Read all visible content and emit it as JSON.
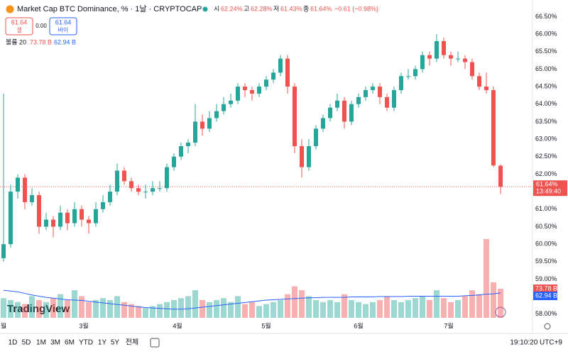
{
  "chart_data": {
    "type": "candlestick",
    "title": "Market Cap BTC Dominance, % · 1날 · CRYPTOCAP",
    "ohlc_header": [
      {
        "label": "시",
        "value": "62.24%"
      },
      {
        "label": "고",
        "value": "62.28%"
      },
      {
        "label": "저",
        "value": "61.43%"
      },
      {
        "label": "종",
        "value": "61.64%"
      }
    ],
    "change": "−0.61 (−0.98%)",
    "sell": {
      "price": "61.64",
      "label": "셀"
    },
    "spread": "0.00",
    "buy": {
      "price": "61.64",
      "label": "바이"
    },
    "volume_legend": {
      "name": "볼륨 20",
      "volume": "73.78 B",
      "ma": "62.94 B"
    },
    "last_price_tag": "61.64%",
    "countdown": "13:49:40",
    "last_price": 61.64,
    "volume_tag": "73.78 B",
    "ma_tag": "62.94 B",
    "up_color": "#26a69a",
    "down_color": "#ef5350",
    "ma_color": "#2962ff",
    "x_labels": [
      "월",
      "3월",
      "4월",
      "5월",
      "6월",
      "7월"
    ],
    "ylim": [
      57.45,
      66.67
    ],
    "yticks": [
      {
        "value": 58,
        "label": "58.00%"
      },
      {
        "value": 58.5,
        "label": "58.50%"
      },
      {
        "value": 59,
        "label": "59.00%"
      },
      {
        "value": 59.5,
        "label": "59.50%"
      },
      {
        "value": 60,
        "label": "60.00%"
      },
      {
        "value": 60.5,
        "label": "60.50%"
      },
      {
        "value": 61,
        "label": "61.00%"
      },
      {
        "value": 61.5,
        "label": "61.50%"
      },
      {
        "value": 62,
        "label": "62.00%"
      },
      {
        "value": 62.5,
        "label": "62.50%"
      },
      {
        "value": 63,
        "label": "63.00%"
      },
      {
        "value": 63.5,
        "label": "63.50%"
      },
      {
        "value": 64,
        "label": "64.00%"
      },
      {
        "value": 64.5,
        "label": "64.50%"
      },
      {
        "value": 65,
        "label": "65.00%"
      },
      {
        "value": 65.5,
        "label": "65.50%"
      },
      {
        "value": 66,
        "label": "66.00%"
      },
      {
        "value": 66.5,
        "label": "66.50%"
      }
    ],
    "ohlc": [
      [
        59.6,
        64.3,
        59.5,
        60.0
      ],
      [
        60.0,
        61.7,
        59.9,
        61.5
      ],
      [
        61.5,
        62.0,
        61.3,
        61.9
      ],
      [
        61.9,
        62.0,
        61.0,
        61.2
      ],
      [
        61.2,
        61.6,
        61.1,
        61.4
      ],
      [
        61.4,
        61.5,
        60.3,
        60.5
      ],
      [
        60.5,
        60.9,
        60.4,
        60.7
      ],
      [
        60.7,
        60.8,
        60.2,
        60.5
      ],
      [
        60.5,
        61.1,
        60.4,
        60.9
      ],
      [
        60.9,
        61.0,
        60.4,
        60.6
      ],
      [
        60.6,
        61.2,
        60.5,
        61.0
      ],
      [
        61.0,
        61.1,
        60.5,
        60.7
      ],
      [
        60.7,
        60.8,
        60.3,
        60.6
      ],
      [
        60.6,
        61.2,
        60.5,
        61.0
      ],
      [
        61.0,
        61.4,
        60.9,
        61.2
      ],
      [
        61.2,
        61.7,
        61.1,
        61.5
      ],
      [
        61.5,
        62.3,
        61.4,
        62.1
      ],
      [
        62.1,
        62.2,
        61.7,
        61.8
      ],
      [
        61.8,
        61.9,
        61.5,
        61.6
      ],
      [
        61.6,
        61.7,
        61.4,
        61.5
      ],
      [
        61.5,
        61.7,
        61.3,
        61.5
      ],
      [
        61.5,
        61.8,
        61.4,
        61.6
      ],
      [
        61.6,
        61.8,
        61.5,
        61.6
      ],
      [
        61.6,
        62.3,
        61.5,
        62.2
      ],
      [
        62.2,
        62.6,
        62.1,
        62.5
      ],
      [
        62.5,
        62.9,
        62.4,
        62.8
      ],
      [
        62.8,
        63.0,
        62.6,
        62.9
      ],
      [
        62.9,
        64.0,
        62.8,
        63.5
      ],
      [
        63.5,
        63.7,
        63.1,
        63.3
      ],
      [
        63.3,
        63.8,
        63.2,
        63.6
      ],
      [
        63.6,
        64.0,
        63.5,
        63.8
      ],
      [
        63.8,
        64.2,
        63.7,
        64.0
      ],
      [
        64.0,
        64.3,
        63.9,
        64.1
      ],
      [
        64.1,
        64.6,
        64.0,
        64.5
      ],
      [
        64.5,
        64.6,
        64.2,
        64.4
      ],
      [
        64.4,
        64.5,
        64.1,
        64.3
      ],
      [
        64.3,
        64.6,
        64.2,
        64.5
      ],
      [
        64.5,
        64.8,
        64.4,
        64.7
      ],
      [
        64.7,
        65.0,
        64.6,
        64.9
      ],
      [
        64.9,
        65.4,
        64.8,
        65.3
      ],
      [
        65.3,
        65.4,
        64.3,
        64.5
      ],
      [
        64.5,
        64.6,
        62.6,
        62.8
      ],
      [
        62.8,
        63.0,
        61.9,
        62.2
      ],
      [
        62.2,
        63.0,
        62.1,
        62.8
      ],
      [
        62.8,
        63.4,
        62.7,
        63.3
      ],
      [
        63.3,
        63.7,
        63.2,
        63.6
      ],
      [
        63.6,
        64.0,
        63.5,
        63.9
      ],
      [
        63.9,
        64.3,
        63.8,
        64.1
      ],
      [
        64.1,
        64.2,
        63.3,
        63.5
      ],
      [
        63.5,
        64.1,
        63.4,
        64.0
      ],
      [
        64.0,
        64.3,
        63.9,
        64.2
      ],
      [
        64.2,
        64.5,
        64.1,
        64.4
      ],
      [
        64.4,
        64.6,
        64.3,
        64.5
      ],
      [
        64.5,
        64.6,
        64.0,
        64.2
      ],
      [
        64.2,
        64.3,
        63.8,
        63.9
      ],
      [
        63.9,
        64.5,
        63.8,
        64.4
      ],
      [
        64.4,
        64.9,
        64.3,
        64.8
      ],
      [
        64.8,
        65.0,
        64.7,
        64.8
      ],
      [
        64.8,
        65.1,
        64.7,
        65.0
      ],
      [
        65.0,
        65.5,
        64.9,
        65.4
      ],
      [
        65.4,
        65.5,
        65.1,
        65.3
      ],
      [
        65.3,
        66.0,
        65.2,
        65.8
      ],
      [
        65.8,
        65.9,
        65.3,
        65.4
      ],
      [
        65.4,
        65.5,
        65.1,
        65.3
      ],
      [
        65.3,
        65.5,
        65.2,
        65.3
      ],
      [
        65.3,
        65.4,
        65.0,
        65.2
      ],
      [
        65.2,
        65.3,
        64.7,
        64.8
      ],
      [
        64.8,
        64.9,
        64.4,
        64.5
      ],
      [
        64.5,
        64.9,
        64.3,
        64.4
      ],
      [
        64.4,
        64.5,
        62.2,
        62.25
      ],
      [
        62.24,
        62.28,
        61.43,
        61.64
      ]
    ],
    "volume": [
      50,
      45,
      40,
      35,
      55,
      45,
      40,
      50,
      60,
      45,
      70,
      55,
      40,
      45,
      50,
      45,
      55,
      40,
      35,
      30,
      25,
      30,
      35,
      40,
      45,
      50,
      55,
      70,
      45,
      40,
      45,
      50,
      40,
      55,
      35,
      40,
      30,
      35,
      40,
      45,
      60,
      80,
      70,
      55,
      45,
      40,
      45,
      40,
      60,
      45,
      40,
      35,
      40,
      45,
      55,
      45,
      40,
      45,
      50,
      55,
      45,
      70,
      50,
      40,
      45,
      55,
      70,
      60,
      200,
      90,
      73.78
    ],
    "volume_ma": [
      70,
      68,
      66,
      62,
      58,
      55,
      52,
      50,
      48,
      46,
      45,
      44,
      42,
      40,
      38,
      36,
      34,
      32,
      30,
      28,
      26,
      25,
      24,
      23,
      22,
      22,
      23,
      25,
      27,
      29,
      31,
      33,
      35,
      37,
      39,
      41,
      43,
      45,
      46,
      47,
      48,
      49,
      50,
      51,
      51,
      52,
      52,
      52,
      52,
      53,
      53,
      53,
      53,
      54,
      54,
      54,
      54,
      55,
      55,
      55,
      55,
      55,
      55,
      55,
      55,
      56,
      57,
      58,
      60,
      61,
      62.94
    ],
    "ranges": [
      "1D",
      "5D",
      "1M",
      "3M",
      "6M",
      "YTD",
      "1Y",
      "5Y",
      "전체"
    ],
    "clock": "19:10:20 UTC+9",
    "logo": "TradingView"
  }
}
